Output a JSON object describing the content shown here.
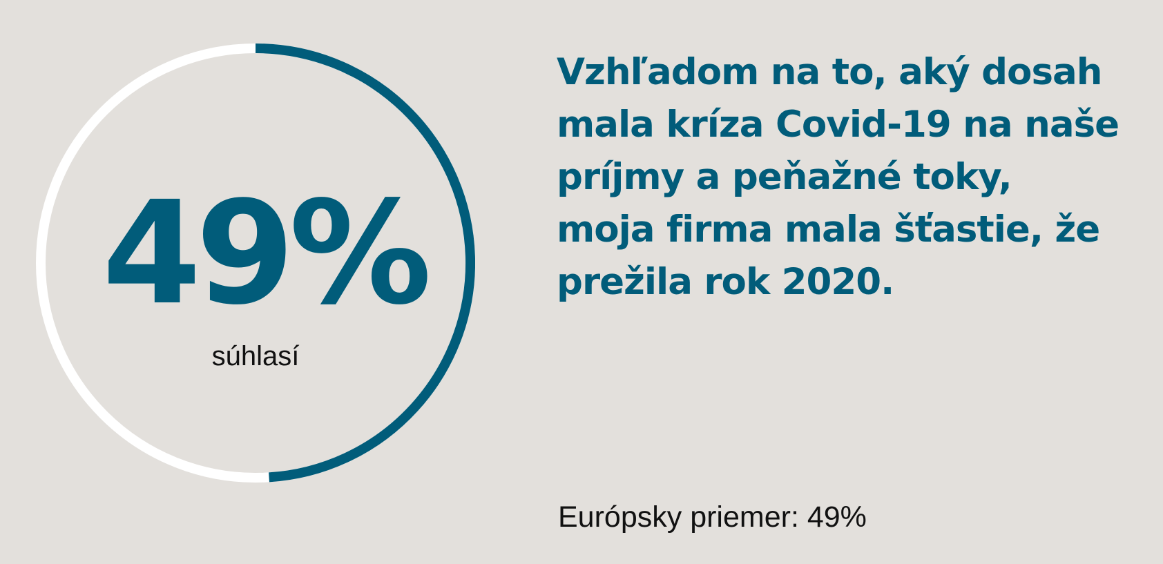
{
  "colors": {
    "background": "#e3e0dc",
    "accent": "#015c7a",
    "track": "#ffffff",
    "text": "#111111"
  },
  "chart_data": {
    "type": "pie",
    "values": [
      49,
      51
    ],
    "value_label": "49%",
    "sub_label": "súhlasí"
  },
  "statement": {
    "lines": [
      "Vzhľadom na to, aký dosah",
      "mala kríza Covid-19 na naše",
      "príjmy a peňažné toky,",
      "moja firma mala šťastie, že",
      "prežila rok 2020."
    ]
  },
  "footer": {
    "average": "Európsky priemer: 49%"
  }
}
